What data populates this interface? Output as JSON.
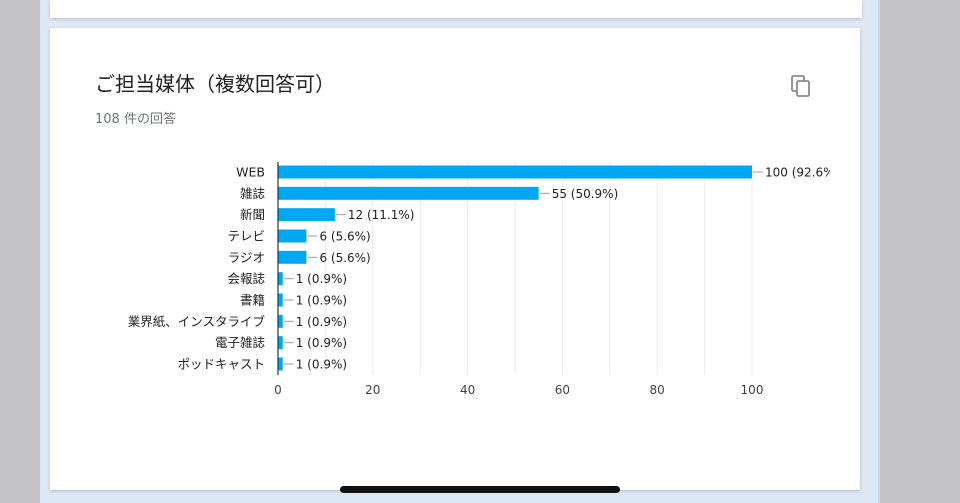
{
  "card": {
    "title": "ご担当媒体（複数回答可）",
    "response_count": "108 件の回答",
    "copy_icon": "copy-icon"
  },
  "colors": {
    "bar": "#00a8f3",
    "axis": "#333333",
    "grid": "#ebebeb",
    "leader": "#9e9e9e",
    "label": "#222222"
  },
  "chart_data": {
    "type": "bar",
    "orientation": "horizontal",
    "categories": [
      "WEB",
      "雑誌",
      "新聞",
      "テレビ",
      "ラジオ",
      "会報誌",
      "書籍",
      "業界紙、インスタライブ",
      "電子雑誌",
      "ポッドキャスト"
    ],
    "values": [
      100,
      55,
      12,
      6,
      6,
      1,
      1,
      1,
      1,
      1
    ],
    "data_labels": [
      "100 (92.6%",
      "55 (50.9%)",
      "12 (11.1%)",
      "6 (5.6%)",
      "6 (5.6%)",
      "1 (0.9%)",
      "1 (0.9%)",
      "1 (0.9%)",
      "1 (0.9%)",
      "1 (0.9%)"
    ],
    "xlim": [
      0,
      100
    ],
    "xticks": [
      0,
      20,
      40,
      60,
      80,
      100
    ],
    "grid": true,
    "legend": "none"
  }
}
